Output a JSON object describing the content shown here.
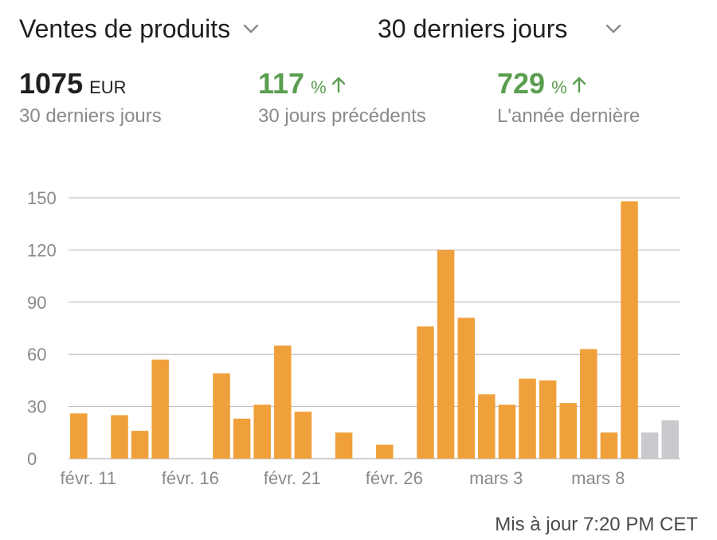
{
  "header": {
    "metric_selector": {
      "label": "Ventes de produits",
      "icon": "chevron-down-icon"
    },
    "period_selector": {
      "label": "30 derniers jours",
      "icon": "chevron-down-icon"
    }
  },
  "stats": {
    "total": {
      "value": "1075",
      "unit": "EUR",
      "caption": "30 derniers jours"
    },
    "previous_period": {
      "value": "117",
      "unit": "%",
      "trend_icon": "arrow-up-icon",
      "caption": "30 jours précédents"
    },
    "last_year": {
      "value": "729",
      "unit": "%",
      "trend_icon": "arrow-up-icon",
      "caption": "L'année dernière"
    }
  },
  "colors": {
    "bar": "#f0a03a",
    "bar_pending": "#c9c9ce",
    "positive": "#5a9e4f",
    "grid": "#b5b5b5",
    "axis_text": "#8a8a8a"
  },
  "chart_data": {
    "type": "bar",
    "title": "",
    "xlabel": "",
    "ylabel": "",
    "ylim": [
      0,
      150
    ],
    "yticks": [
      0,
      30,
      60,
      90,
      120,
      150
    ],
    "grid": true,
    "x_tick_labels": [
      "févr. 11",
      "févr. 16",
      "févr. 21",
      "févr. 26",
      "mars 3",
      "mars 8"
    ],
    "categories": [
      "févr. 11",
      "févr. 12",
      "févr. 13",
      "févr. 14",
      "févr. 15",
      "févr. 16",
      "févr. 17",
      "févr. 18",
      "févr. 19",
      "févr. 20",
      "févr. 21",
      "févr. 22",
      "févr. 23",
      "févr. 24",
      "févr. 25",
      "févr. 26",
      "févr. 27",
      "févr. 28",
      "mars 1",
      "mars 2",
      "mars 3",
      "mars 4",
      "mars 5",
      "mars 6",
      "mars 7",
      "mars 8",
      "mars 9",
      "mars 10",
      "mars 11",
      "mars 12"
    ],
    "values": [
      26,
      0,
      25,
      16,
      57,
      0,
      0,
      49,
      23,
      31,
      65,
      27,
      0,
      15,
      0,
      8,
      0,
      76,
      120,
      81,
      37,
      31,
      46,
      45,
      32,
      63,
      15,
      148,
      15,
      22
    ],
    "pending_from_index": 28
  },
  "footer": {
    "updated": "Mis à jour 7:20 PM CET"
  }
}
